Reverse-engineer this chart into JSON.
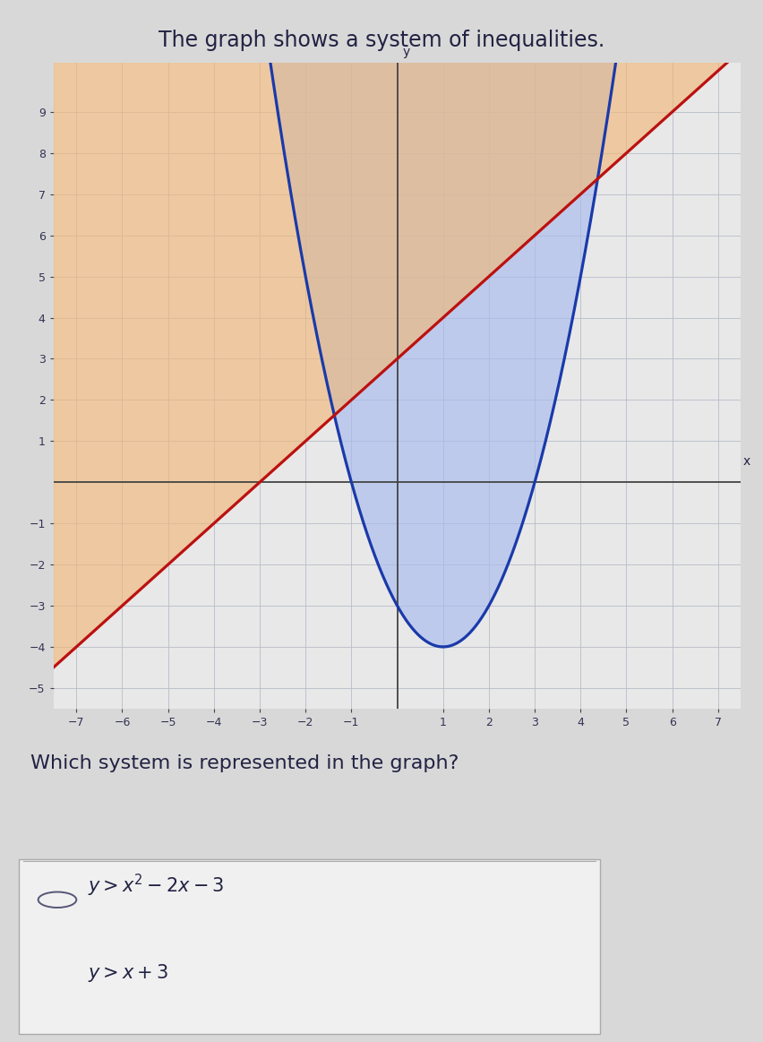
{
  "title": "The graph shows a system of inequalities.",
  "question": "Which system is represented in the graph?",
  "xmin": -7.5,
  "xmax": 7.5,
  "ymin": -5.5,
  "ymax": 10.2,
  "xticks": [
    -7,
    -6,
    -5,
    -4,
    -3,
    -2,
    -1,
    1,
    2,
    3,
    4,
    5,
    6,
    7
  ],
  "yticks": [
    -5,
    -4,
    -3,
    -2,
    -1,
    1,
    2,
    3,
    4,
    5,
    6,
    7,
    8,
    9
  ],
  "parabola_color": "#1a3aaa",
  "line_color": "#bb1111",
  "blue_fill_color": "#a8bbee",
  "orange_fill_color": "#f0b87a",
  "bg_color": "#d8d8d8",
  "plot_bg_color": "#e8e8e8",
  "answer_bg_color": "#f0f0f0",
  "grid_color": "#b8bcc8",
  "axis_color": "#444444",
  "text_color": "#222244",
  "line_width": 2.3,
  "parabola_lw": 2.3,
  "font_size_title": 17,
  "font_size_ticks": 9,
  "font_size_question": 16,
  "font_size_answer": 15
}
